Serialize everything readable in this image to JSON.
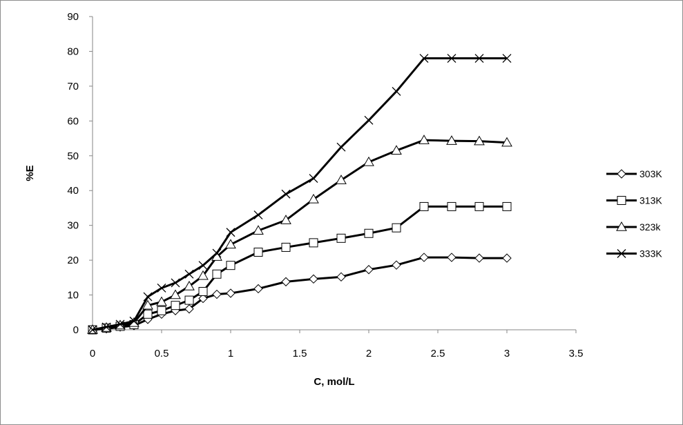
{
  "chart_data": {
    "type": "line",
    "title": "",
    "xlabel": "C, mol/L",
    "ylabel": "%E",
    "xlim": [
      0,
      3.5
    ],
    "ylim": [
      0,
      90
    ],
    "x_ticks": [
      "0",
      "0.5",
      "1",
      "1.5",
      "2",
      "2.5",
      "3",
      "3.5"
    ],
    "y_ticks": [
      "0",
      "10",
      "20",
      "30",
      "40",
      "50",
      "60",
      "70",
      "80",
      "90"
    ],
    "grid": false,
    "legend_position": "right",
    "line_color": "#000000",
    "series": [
      {
        "name": "303K",
        "marker": "diamond",
        "x": [
          0,
          0.1,
          0.2,
          0.3,
          0.4,
          0.5,
          0.6,
          0.7,
          0.8,
          0.9,
          1.0,
          1.2,
          1.4,
          1.6,
          1.8,
          2.0,
          2.2,
          2.4,
          2.6,
          2.8,
          3.0
        ],
        "y": [
          0,
          0.3,
          0.8,
          1.2,
          3.0,
          4.5,
          5.5,
          6.0,
          9.0,
          10.2,
          10.5,
          11.8,
          13.8,
          14.6,
          15.2,
          17.3,
          18.6,
          20.8,
          20.8,
          20.6,
          20.6
        ]
      },
      {
        "name": "313K",
        "marker": "square",
        "x": [
          0,
          0.1,
          0.2,
          0.3,
          0.4,
          0.5,
          0.6,
          0.7,
          0.8,
          0.9,
          1.0,
          1.2,
          1.4,
          1.6,
          1.8,
          2.0,
          2.2,
          2.4,
          2.6,
          2.8,
          3.0
        ],
        "y": [
          0,
          0.5,
          1.0,
          1.5,
          4.5,
          5.5,
          7.0,
          8.5,
          11.0,
          16.0,
          18.5,
          22.3,
          23.7,
          25.0,
          26.3,
          27.7,
          29.3,
          35.4,
          35.4,
          35.4,
          35.4
        ]
      },
      {
        "name": "323k",
        "marker": "triangle",
        "x": [
          0,
          0.1,
          0.2,
          0.3,
          0.4,
          0.5,
          0.6,
          0.7,
          0.8,
          0.9,
          1.0,
          1.2,
          1.4,
          1.6,
          1.8,
          2.0,
          2.2,
          2.4,
          2.6,
          2.8,
          3.0
        ],
        "y": [
          0,
          0.6,
          1.3,
          2.0,
          7.0,
          8.0,
          10.0,
          12.5,
          15.5,
          21.0,
          24.5,
          28.5,
          31.5,
          37.5,
          43.0,
          48.2,
          51.5,
          54.5,
          54.3,
          54.2,
          53.8
        ]
      },
      {
        "name": "333K",
        "marker": "x",
        "x": [
          0,
          0.1,
          0.2,
          0.3,
          0.4,
          0.5,
          0.6,
          0.7,
          0.8,
          0.9,
          1.0,
          1.2,
          1.4,
          1.6,
          1.8,
          2.0,
          2.2,
          2.4,
          2.6,
          2.8,
          3.0
        ],
        "y": [
          0,
          0.8,
          1.6,
          2.5,
          9.5,
          12.0,
          13.5,
          16.0,
          18.5,
          22.0,
          28.0,
          33.0,
          39.0,
          43.5,
          52.5,
          60.2,
          68.5,
          78.0,
          78.0,
          78.0,
          78.0
        ]
      }
    ]
  }
}
